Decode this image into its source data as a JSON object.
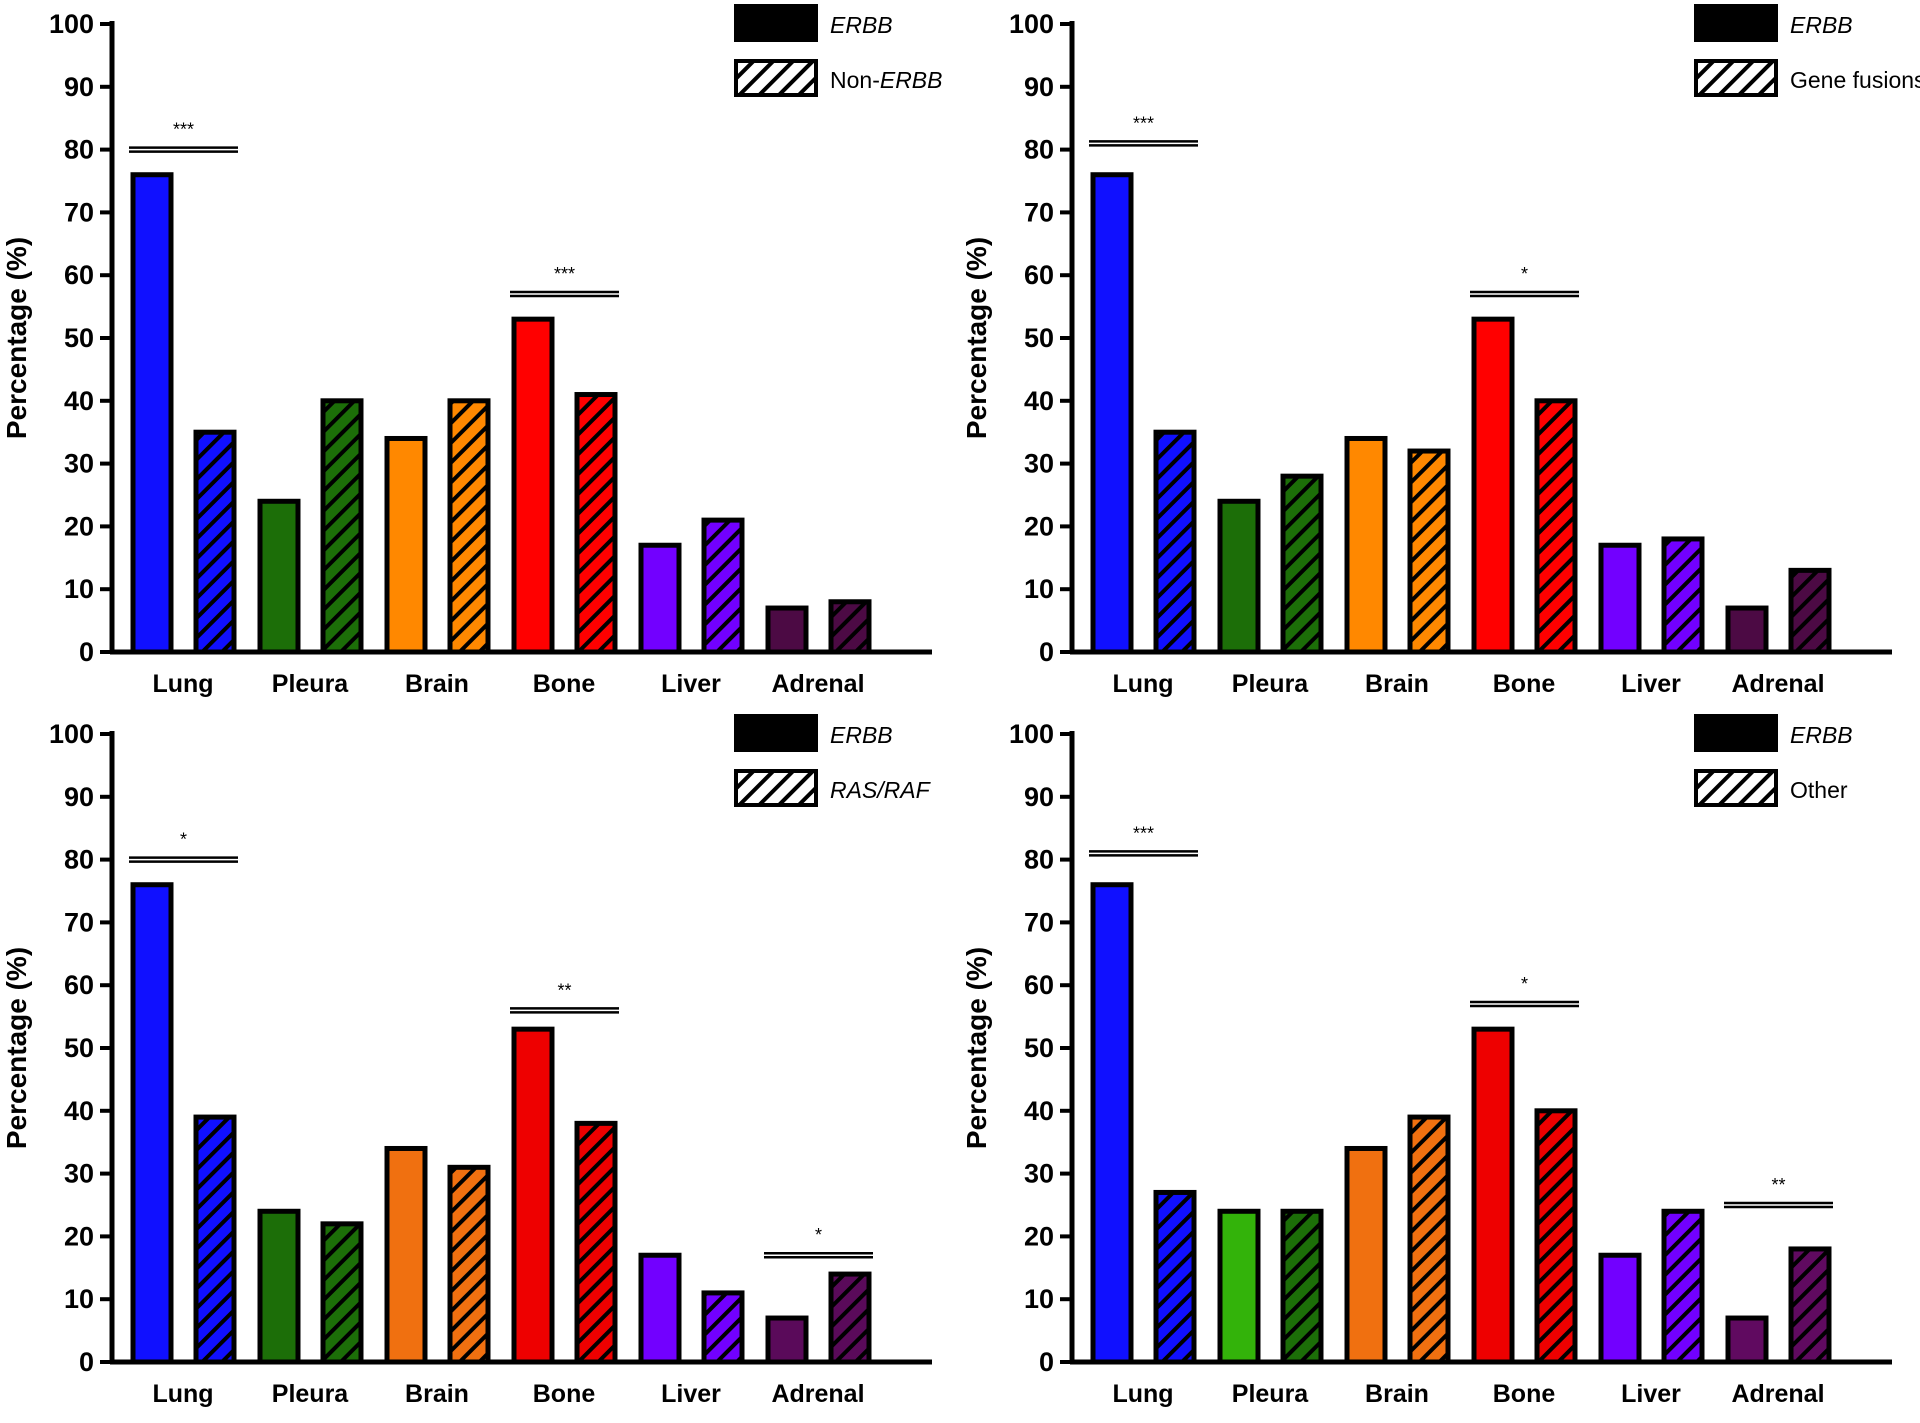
{
  "chart_data": [
    {
      "type": "bar",
      "ylabel": "Percentage (%)",
      "ylim": [
        0,
        100
      ],
      "yticks": [
        0,
        10,
        20,
        30,
        40,
        50,
        60,
        70,
        80,
        90,
        100
      ],
      "categories": [
        "Lung",
        "Pleura",
        "Brain",
        "Bone",
        "Liver",
        "Adrenal"
      ],
      "legend": [
        {
          "prefix": "",
          "label": "ERBB",
          "italic": true
        },
        {
          "prefix": "Non-",
          "label": "ERBB",
          "italic": true
        }
      ],
      "series": [
        {
          "name": "ERBB",
          "values": [
            76,
            24,
            34,
            53,
            17,
            7
          ]
        },
        {
          "name": "Non-ERBB",
          "values": [
            35,
            40,
            40,
            41,
            21,
            8
          ]
        }
      ],
      "significance": [
        {
          "category": "Lung",
          "label": "***",
          "level": 80
        },
        {
          "category": "Bone",
          "label": "***",
          "level": 57
        }
      ]
    },
    {
      "type": "bar",
      "ylabel": "Percentage (%)",
      "ylim": [
        0,
        100
      ],
      "yticks": [
        0,
        10,
        20,
        30,
        40,
        50,
        60,
        70,
        80,
        90,
        100
      ],
      "categories": [
        "Lung",
        "Pleura",
        "Brain",
        "Bone",
        "Liver",
        "Adrenal"
      ],
      "legend": [
        {
          "prefix": "",
          "label": "ERBB",
          "italic": true
        },
        {
          "prefix": "",
          "label": "Gene fusions",
          "italic": false
        }
      ],
      "series": [
        {
          "name": "ERBB",
          "values": [
            76,
            24,
            34,
            53,
            17,
            7
          ]
        },
        {
          "name": "Gene fusions",
          "values": [
            35,
            28,
            32,
            40,
            18,
            13
          ]
        }
      ],
      "significance": [
        {
          "category": "Lung",
          "label": "***",
          "level": 81
        },
        {
          "category": "Bone",
          "label": "*",
          "level": 57
        }
      ]
    },
    {
      "type": "bar",
      "ylabel": "Percentage (%)",
      "ylim": [
        0,
        100
      ],
      "yticks": [
        0,
        10,
        20,
        30,
        40,
        50,
        60,
        70,
        80,
        90,
        100
      ],
      "categories": [
        "Lung",
        "Pleura",
        "Brain",
        "Bone",
        "Liver",
        "Adrenal"
      ],
      "legend": [
        {
          "prefix": "",
          "label": "ERBB",
          "italic": true
        },
        {
          "prefix": "",
          "label": "RAS/RAF",
          "italic": true
        }
      ],
      "series": [
        {
          "name": "ERBB",
          "values": [
            76,
            24,
            34,
            53,
            17,
            7
          ]
        },
        {
          "name": "RAS/RAF",
          "values": [
            39,
            22,
            31,
            38,
            11,
            14
          ]
        }
      ],
      "significance": [
        {
          "category": "Lung",
          "label": "*",
          "level": 80
        },
        {
          "category": "Bone",
          "label": "**",
          "level": 56
        },
        {
          "category": "Adrenal",
          "label": "*",
          "level": 17
        }
      ]
    },
    {
      "type": "bar",
      "ylabel": "Percentage (%)",
      "ylim": [
        0,
        100
      ],
      "yticks": [
        0,
        10,
        20,
        30,
        40,
        50,
        60,
        70,
        80,
        90,
        100
      ],
      "categories": [
        "Lung",
        "Pleura",
        "Brain",
        "Bone",
        "Liver",
        "Adrenal"
      ],
      "legend": [
        {
          "prefix": "",
          "label": "ERBB",
          "italic": true
        },
        {
          "prefix": "",
          "label": "Other",
          "italic": false
        }
      ],
      "series": [
        {
          "name": "ERBB",
          "values": [
            76,
            24,
            34,
            53,
            17,
            7
          ]
        },
        {
          "name": "Other",
          "values": [
            27,
            24,
            39,
            40,
            24,
            18
          ]
        }
      ],
      "significance": [
        {
          "category": "Lung",
          "label": "***",
          "level": 81
        },
        {
          "category": "Bone",
          "label": "*",
          "level": 57
        },
        {
          "category": "Adrenal",
          "label": "**",
          "level": 25
        }
      ]
    }
  ],
  "colors": {
    "panels": [
      [
        "#1010ff",
        "#1c6e08",
        "#ff8800",
        "#ff0000",
        "#7200ff",
        "#4c0a44"
      ],
      [
        "#1010ff",
        "#1c6e08",
        "#ff8800",
        "#ff0000",
        "#7200ff",
        "#4c0a44"
      ],
      [
        "#1010ff",
        "#1c6e08",
        "#f07010",
        "#ee0000",
        "#7200ff",
        "#5a0a5a"
      ],
      [
        "#1010ff",
        "#33b30a",
        "#f07010",
        "#ee0000",
        "#7200ff",
        "#600a60"
      ]
    ],
    "hatched_pleura_panel4": "#1c6e08"
  }
}
